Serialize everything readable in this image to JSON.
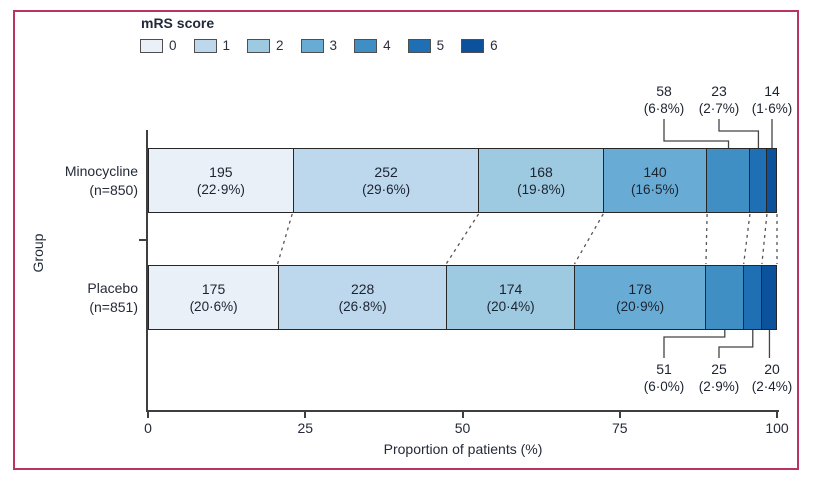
{
  "chart_data": {
    "type": "bar",
    "subtype": "horizontal-stacked",
    "xlabel": "Proportion of patients (%)",
    "ylabel": "Group",
    "xlim": [
      0,
      100
    ],
    "x_ticks": [
      0,
      25,
      50,
      75,
      100
    ],
    "legend": {
      "title": "mRS score",
      "entries": [
        "0",
        "1",
        "2",
        "3",
        "4",
        "5",
        "6"
      ],
      "position": "top-left"
    },
    "colors": [
      "#e9f0f8",
      "#bdd7ec",
      "#9ecae1",
      "#68acd5",
      "#3f8fc5",
      "#1e6fb3",
      "#0b519c"
    ],
    "frame_color": "#bb3263",
    "rows": [
      {
        "group": "Minocycline",
        "n_label": "(n=850)",
        "counts": [
          195,
          252,
          168,
          140,
          58,
          23,
          14
        ],
        "pcts": [
          22.9,
          29.6,
          19.8,
          16.5,
          6.8,
          2.7,
          1.6
        ],
        "pct_labels": [
          "(22·9%)",
          "(29·6%)",
          "(19·8%)",
          "(16·5%)",
          "(6·8%)",
          "(2·7%)",
          "(1·6%)"
        ]
      },
      {
        "group": "Placebo",
        "n_label": "(n=851)",
        "counts": [
          175,
          228,
          174,
          178,
          51,
          25,
          20
        ],
        "pcts": [
          20.6,
          26.8,
          20.4,
          20.9,
          6.0,
          2.9,
          2.4
        ],
        "pct_labels": [
          "(20·6%)",
          "(26·8%)",
          "(20·4%)",
          "(20·9%)",
          "(6·0%)",
          "(2·9%)",
          "(2·4%)"
        ]
      }
    ]
  }
}
